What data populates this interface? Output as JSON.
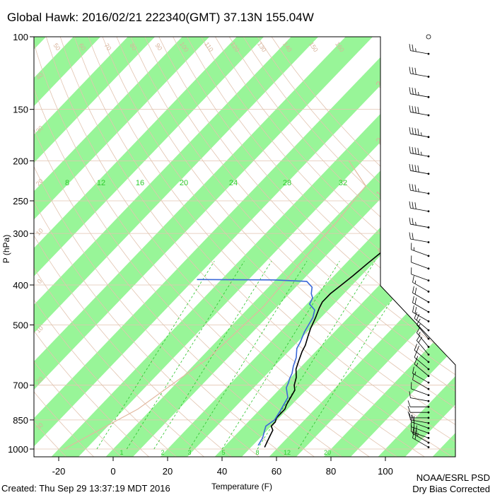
{
  "chart_data": {
    "type": "line",
    "subtype": "skew-T log-P sounding",
    "title": "Global Hawk: 2016/02/21 222340(GMT) 37.13N 155.04W",
    "xlabel": "Temperature (F)",
    "ylabel": "P (hPa)",
    "xlim": [
      -29,
      108
    ],
    "ylim": [
      1050,
      100
    ],
    "y_scale": "log",
    "x_ticks": [
      -20,
      0,
      20,
      40,
      60,
      80,
      100
    ],
    "y_ticks": [
      100,
      150,
      200,
      250,
      300,
      400,
      500,
      700,
      850,
      1000
    ],
    "isotherm_band_color": "#98f598",
    "mixing_ratio_labels": [
      "8",
      "12",
      "16",
      "20",
      "24",
      "28",
      "32"
    ],
    "mixing_ratio_bottom_labels": [
      "1",
      "2",
      "3",
      "5",
      "8",
      "12",
      "20"
    ],
    "adiabat_labels": [
      "50",
      "60",
      "70",
      "80",
      "90",
      "100",
      "110",
      "120",
      "130",
      "140",
      "150",
      "160"
    ],
    "right_labels": [
      "30",
      "20",
      "10",
      "0",
      "10",
      "20",
      "30"
    ],
    "left_labels": [
      "40",
      "30",
      "20",
      "10",
      "0",
      "10",
      "20",
      "30"
    ],
    "series": [
      {
        "name": "Temperature",
        "color": "#000000",
        "points": [
          [
            55,
            990
          ],
          [
            54,
            960
          ],
          [
            53,
            930
          ],
          [
            52,
            900
          ],
          [
            50,
            880
          ],
          [
            50,
            860
          ],
          [
            49,
            840
          ],
          [
            49,
            800
          ],
          [
            48,
            780
          ],
          [
            47,
            750
          ],
          [
            46,
            720
          ],
          [
            44,
            700
          ],
          [
            42,
            670
          ],
          [
            39,
            640
          ],
          [
            37,
            610
          ],
          [
            35,
            580
          ],
          [
            34,
            560
          ],
          [
            32,
            535
          ],
          [
            30,
            510
          ],
          [
            28,
            480
          ],
          [
            26,
            455
          ],
          [
            25,
            440
          ],
          [
            25,
            420
          ],
          [
            26,
            400
          ],
          [
            27,
            380
          ],
          [
            28,
            355
          ],
          [
            29,
            335
          ],
          [
            30,
            320
          ],
          [
            31,
            310
          ],
          [
            34,
            300
          ],
          [
            35,
            290
          ],
          [
            36,
            275
          ],
          [
            36,
            265
          ],
          [
            36,
            255
          ],
          [
            37,
            245
          ],
          [
            38,
            230
          ],
          [
            40,
            220
          ],
          [
            43,
            210
          ],
          [
            45,
            200
          ],
          [
            47,
            190
          ],
          [
            49,
            180
          ],
          [
            51,
            172
          ],
          [
            53,
            165
          ],
          [
            56,
            158
          ],
          [
            58,
            150
          ],
          [
            61,
            143
          ],
          [
            63,
            137
          ],
          [
            65,
            132
          ],
          [
            67,
            126
          ],
          [
            68,
            121
          ],
          [
            70,
            116
          ],
          [
            71,
            111
          ],
          [
            72,
            108
          ],
          [
            73,
            105
          ]
        ]
      },
      {
        "name": "Dewpoint",
        "color": "#3a67d8",
        "points": [
          [
            52,
            980
          ],
          [
            51,
            940
          ],
          [
            49,
            900
          ],
          [
            48,
            880
          ],
          [
            49,
            850
          ],
          [
            48,
            810
          ],
          [
            47,
            780
          ],
          [
            46,
            750
          ],
          [
            44,
            730
          ],
          [
            42,
            710
          ],
          [
            41,
            690
          ],
          [
            40,
            675
          ],
          [
            39,
            655
          ],
          [
            37,
            630
          ],
          [
            35,
            600
          ],
          [
            32,
            570
          ],
          [
            31,
            550
          ],
          [
            29,
            520
          ],
          [
            28,
            500
          ],
          [
            27,
            480
          ],
          [
            25,
            460
          ],
          [
            21,
            445
          ],
          [
            20,
            430
          ],
          [
            18,
            420
          ],
          [
            16,
            405
          ],
          [
            12,
            392
          ],
          [
            0,
            389
          ],
          [
            -29,
            388
          ]
        ]
      }
    ],
    "wind_barbs": {
      "pressures": [
        990,
        965,
        940,
        915,
        890,
        865,
        840,
        815,
        790,
        765,
        740,
        715,
        690,
        665,
        640,
        615,
        590,
        565,
        540,
        515,
        490,
        465,
        440,
        415,
        390,
        365,
        340,
        315,
        290,
        265,
        240,
        215,
        195,
        175,
        155,
        140,
        125,
        110,
        100
      ],
      "speeds_kt": [
        20,
        25,
        25,
        25,
        20,
        15,
        15,
        10,
        10,
        10,
        10,
        10,
        15,
        15,
        15,
        20,
        20,
        15,
        15,
        20,
        20,
        20,
        20,
        15,
        10,
        10,
        15,
        20,
        25,
        30,
        35,
        40,
        45,
        45,
        40,
        35,
        30,
        25,
        0
      ],
      "directions_deg": [
        300,
        300,
        290,
        290,
        290,
        280,
        270,
        270,
        270,
        280,
        290,
        300,
        300,
        310,
        310,
        310,
        320,
        320,
        320,
        310,
        300,
        300,
        300,
        300,
        290,
        290,
        290,
        280,
        280,
        280,
        280,
        280,
        280,
        280,
        280,
        280,
        280,
        280,
        0
      ]
    },
    "footer_left": "Created: Thu Sep 29 13:37:19 MDT 2016",
    "footer_right_1": "NOAA/ESRL PSD",
    "footer_right_2": "Dry Bias Corrected"
  }
}
